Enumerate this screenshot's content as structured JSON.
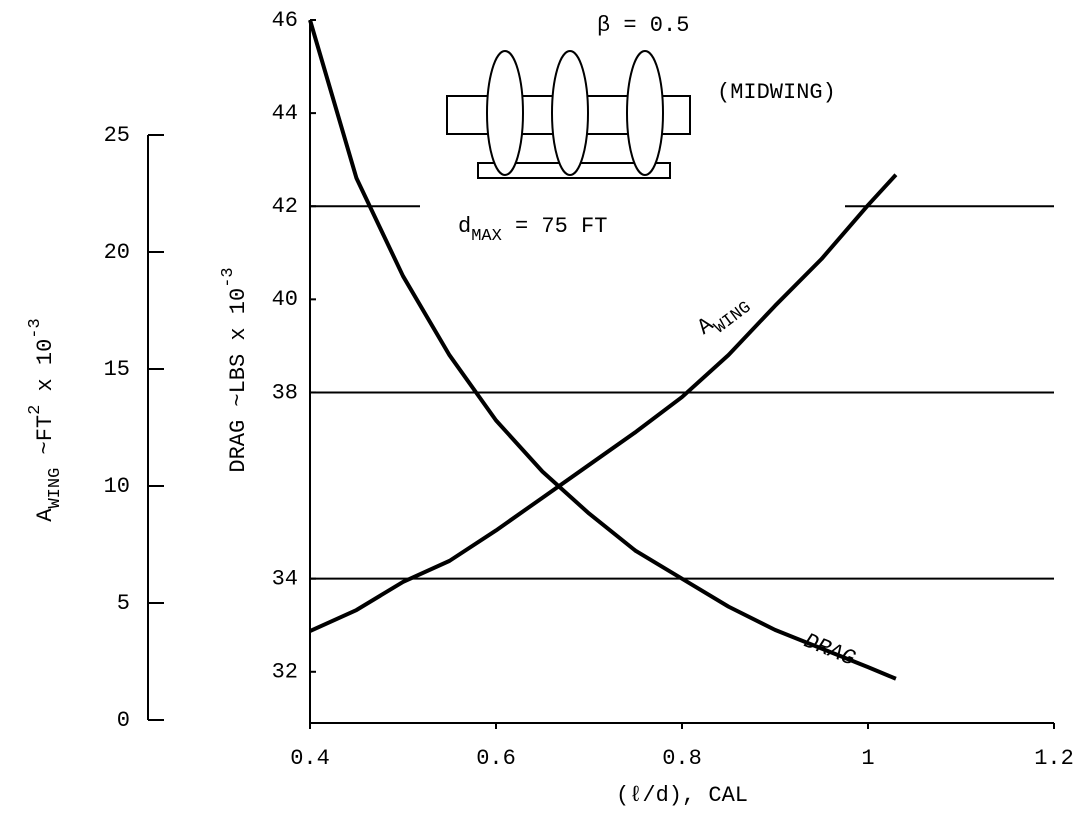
{
  "chart_data": {
    "type": "line",
    "x_label": "(ℓ/d), CAL",
    "y_label": [
      "DRAG ~LBS x 10",
      "-3"
    ],
    "y2_label": [
      "A",
      "WING",
      " ~FT",
      "2",
      " x 10",
      "-3"
    ],
    "annotations": {
      "beta": "β  = 0.5",
      "config": "(MIDWING)",
      "dmax": [
        "d",
        "MAX",
        " = 75 FT"
      ]
    },
    "x": [
      0.4,
      0.45,
      0.5,
      0.55,
      0.6,
      0.65,
      0.7,
      0.75,
      0.8,
      0.85,
      0.9,
      0.95,
      1.0,
      1.03
    ],
    "series": [
      {
        "name": "DRAG",
        "color": "#000000",
        "values": [
          46,
          42.6,
          40.5,
          38.8,
          37.4,
          36.3,
          35.4,
          34.6,
          34.0,
          33.4,
          32.9,
          32.5,
          32.1,
          31.85
        ]
      },
      {
        "name": [
          "A",
          "WING"
        ],
        "color": "#000000",
        "axis": "y2",
        "values": [
          3.8,
          4.7,
          5.9,
          6.8,
          8.1,
          9.5,
          10.9,
          12.3,
          13.8,
          15.6,
          17.7,
          19.7,
          22.0,
          23.3
        ]
      }
    ],
    "xlim": [
      0.4,
      1.2
    ],
    "xticks": [
      0.4,
      0.6,
      0.8,
      1.0,
      1.2
    ],
    "ylim": [
      30.9,
      46
    ],
    "yticks": [
      46,
      44,
      42,
      40,
      38,
      34,
      32
    ],
    "y2lim": [
      0,
      25
    ],
    "y2ticks": [
      0,
      5,
      10,
      15,
      20,
      25
    ],
    "grid_lines": [
      42,
      38,
      34
    ]
  }
}
